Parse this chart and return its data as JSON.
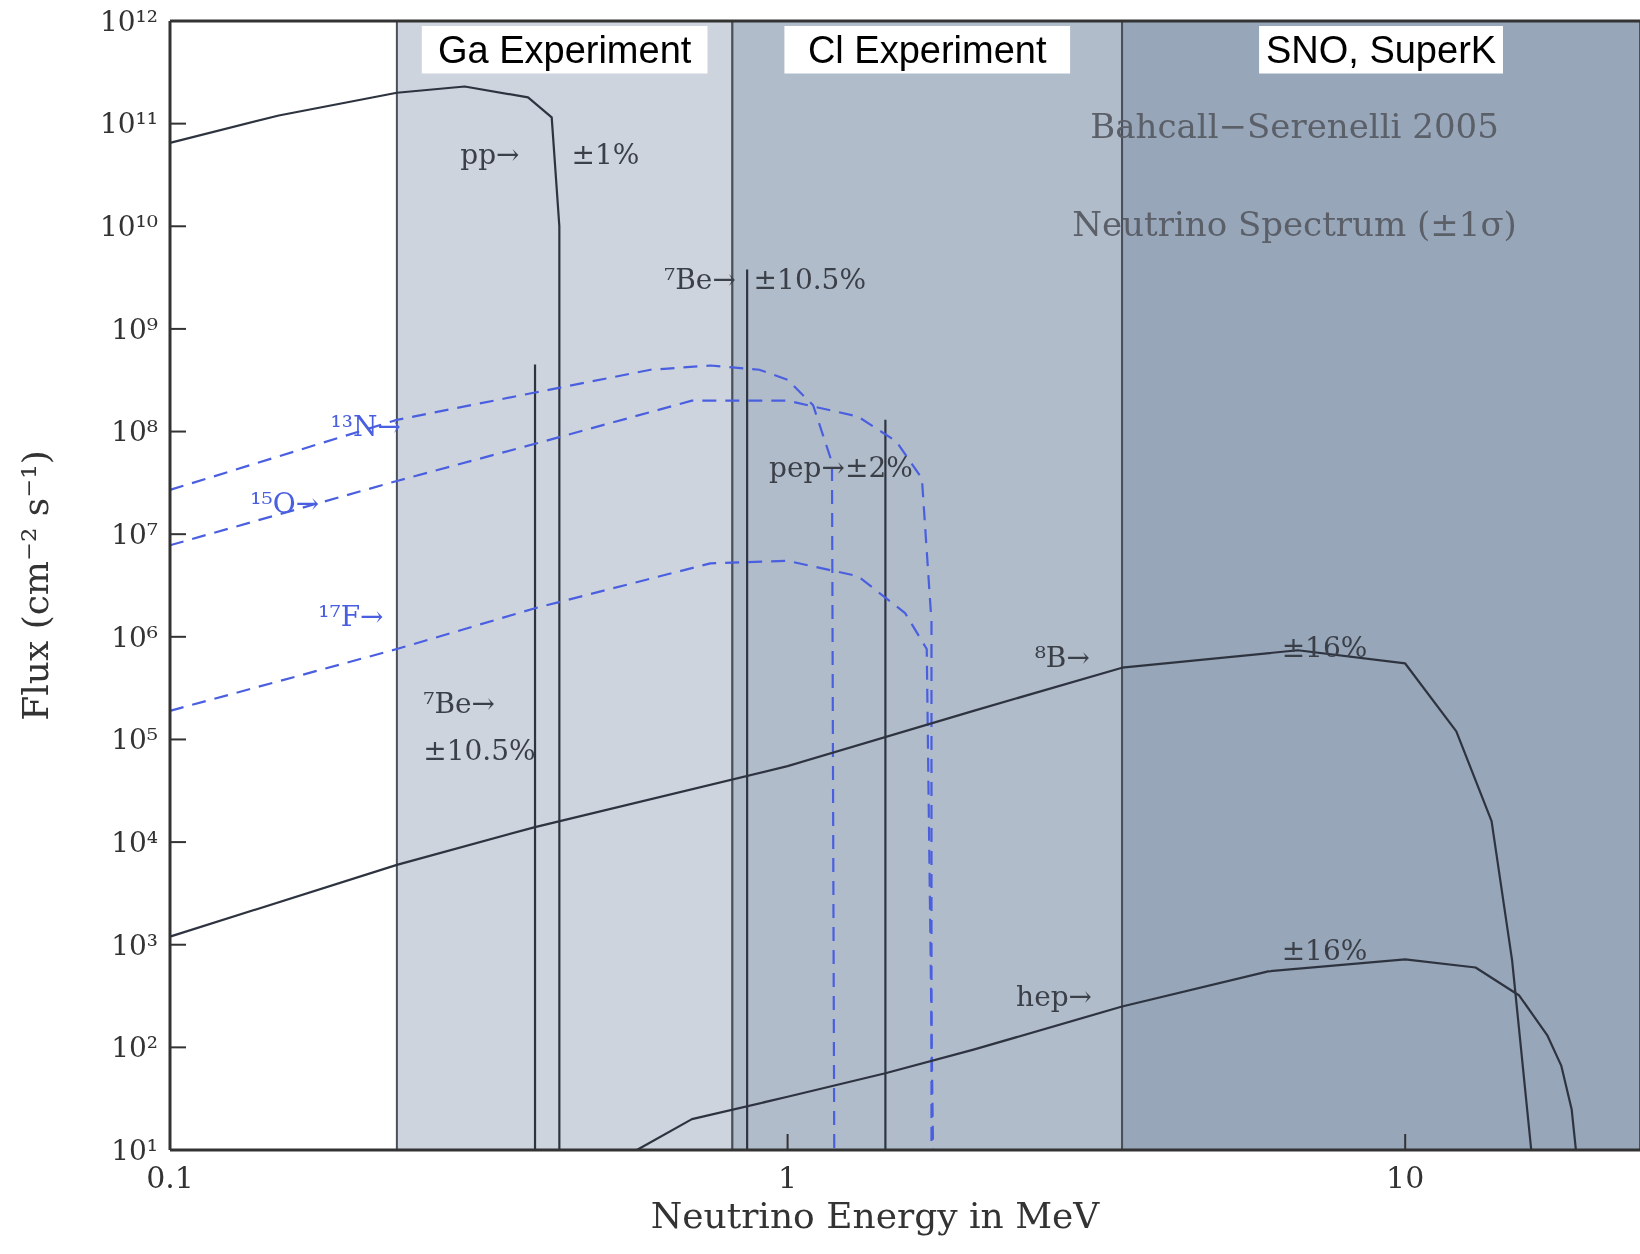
{
  "chart_data": {
    "type": "line",
    "title": "Bahcall−Serenelli 2005",
    "subtitle": "Neutrino Spectrum (±1σ)",
    "xlabel": "Neutrino Energy in MeV",
    "ylabel": "Flux (cm⁻² s⁻¹)",
    "log": "xy",
    "marker": "none",
    "xlim": [
      0.1,
      24
    ],
    "ylim": [
      10,
      1000000000000
    ],
    "xticks": [
      0.1,
      1,
      10
    ],
    "yticks": [
      {
        "value": 10,
        "label": "10¹"
      },
      {
        "value": 100,
        "label": "10²"
      },
      {
        "value": 1000,
        "label": "10³"
      },
      {
        "value": 10000,
        "label": "10⁴"
      },
      {
        "value": 100000,
        "label": "10⁵"
      },
      {
        "value": 1000000,
        "label": "10⁶"
      },
      {
        "value": 10000000,
        "label": "10⁷"
      },
      {
        "value": 100000000,
        "label": "10⁸"
      },
      {
        "value": 1000000000,
        "label": "10⁹"
      },
      {
        "value": 10000000000,
        "label": "10¹⁰"
      },
      {
        "value": 100000000000,
        "label": "10¹¹"
      },
      {
        "value": 1000000000000,
        "label": "10¹²"
      }
    ],
    "bands": [
      {
        "axis": "x",
        "from": 0.233,
        "to": 0.814,
        "label": "Ga Experiment",
        "color": "#cdd4de"
      },
      {
        "axis": "x",
        "from": 0.814,
        "to": 3.48,
        "label": "Cl Experiment",
        "color": "#b1bccb"
      },
      {
        "axis": "x",
        "from": 3.48,
        "to": 24,
        "label": "SNO, SuperK",
        "color": "#97a6b9"
      }
    ],
    "series": [
      {
        "color": "#2e3340",
        "line_style": "solid",
        "x": [
          0.1,
          0.15,
          0.233,
          0.3,
          0.38,
          0.415,
          0.427,
          0.427
        ],
        "values": [
          65000000000,
          120000000000,
          200000000000,
          230000000000,
          180000000000,
          115000000000,
          10000000000,
          10
        ]
      },
      {
        "color": "#2e3340",
        "line_style": "solid",
        "x": [
          0.39,
          0.39
        ],
        "values": [
          450000000,
          10
        ]
      },
      {
        "color": "#2e3340",
        "line_style": "solid",
        "x": [
          0.86,
          0.86
        ],
        "values": [
          3800000000,
          10
        ]
      },
      {
        "color": "#2e3340",
        "line_style": "solid",
        "x": [
          1.44,
          1.44
        ],
        "values": [
          130000000,
          10
        ]
      },
      {
        "color": "#4a5fe0",
        "line_style": "dashed",
        "x": [
          0.1,
          0.233,
          0.39,
          0.6,
          0.75,
          0.9,
          1.0,
          1.1,
          1.18,
          1.19
        ],
        "values": [
          27000000,
          130000000,
          240000000,
          400000000,
          440000000,
          400000000,
          320000000,
          180000000,
          50000000,
          10
        ]
      },
      {
        "color": "#4a5fe0",
        "line_style": "dashed",
        "x": [
          0.1,
          0.233,
          0.39,
          0.7,
          1.0,
          1.3,
          1.5,
          1.65,
          1.71,
          1.71
        ],
        "values": [
          7800000,
          33000000,
          76000000,
          200000000,
          200000000,
          140000000,
          80000000,
          35000000,
          1400000,
          10
        ]
      },
      {
        "color": "#4a5fe0",
        "line_style": "dashed",
        "x": [
          0.1,
          0.233,
          0.39,
          0.75,
          1.0,
          1.3,
          1.55,
          1.68,
          1.72
        ],
        "values": [
          190000,
          760000,
          1900000,
          5200000,
          5500000,
          3900000,
          1700000,
          760000,
          10
        ]
      },
      {
        "color": "#2e3340",
        "line_style": "solid",
        "x": [
          0.1,
          0.233,
          0.39,
          1,
          2,
          3.48,
          6.7,
          10,
          12.1,
          13.8,
          14.9,
          16
        ],
        "values": [
          1200,
          6000,
          14000,
          55000,
          190000,
          500000,
          740000,
          550000,
          120000,
          16000,
          700,
          10
        ]
      },
      {
        "color": "#2e3340",
        "line_style": "solid",
        "x": [
          0.57,
          0.7,
          1.0,
          1.44,
          2,
          3.48,
          6,
          10,
          13,
          15.3,
          17,
          17.9,
          18.6,
          18.9
        ],
        "values": [
          10,
          20,
          33,
          56,
          95,
          250,
          550,
          720,
          600,
          320,
          130,
          66,
          25,
          10
        ]
      }
    ],
    "annotations": [
      "pp→",
      "±1%",
      "⁷Be→",
      "±10.5%",
      "⁷Be→",
      "±10.5%",
      "¹³N→",
      "¹⁵O→",
      "¹⁷F→",
      "pep→±2%",
      "⁸B→",
      "±16%",
      "hep→",
      "±16%"
    ]
  }
}
